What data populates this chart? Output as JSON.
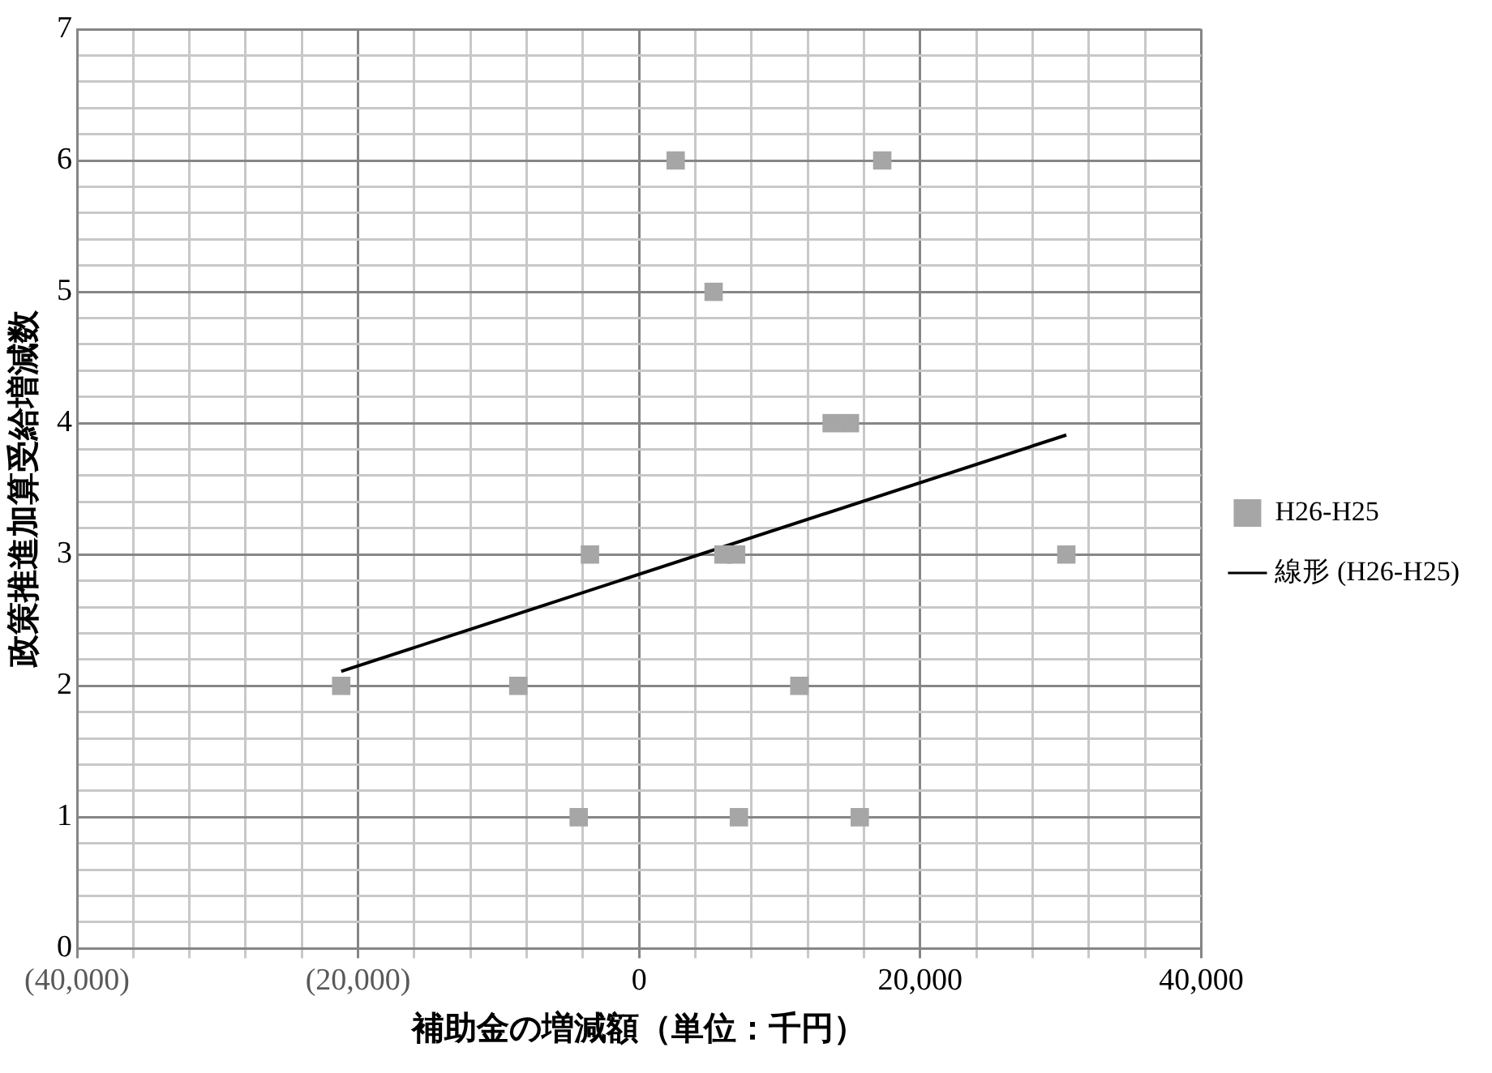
{
  "chart_data": {
    "type": "scatter",
    "xlabel": "補助金の増減額（単位：千円）",
    "ylabel": "政策推進加算受給増減数",
    "xlim": [
      -40000,
      40000
    ],
    "xticks": [
      {
        "value": -40000,
        "label": "(40,000)"
      },
      {
        "value": -36000,
        "label": null
      },
      {
        "value": -32000,
        "label": null
      },
      {
        "value": -28000,
        "label": null
      },
      {
        "value": -24000,
        "label": null
      },
      {
        "value": -20000,
        "label": "(20,000)"
      },
      {
        "value": -16000,
        "label": null
      },
      {
        "value": -12000,
        "label": null
      },
      {
        "value": -8000,
        "label": null
      },
      {
        "value": -4000,
        "label": null
      },
      0,
      {
        "value": 4000,
        "label": null
      },
      {
        "value": 8000,
        "label": null
      },
      {
        "value": 12000,
        "label": null
      },
      {
        "value": 16000,
        "label": null
      },
      {
        "value": 20000,
        "label": "20,000"
      },
      {
        "value": 24000,
        "label": null
      },
      {
        "value": 28000,
        "label": null
      },
      {
        "value": 32000,
        "label": null
      },
      {
        "value": 36000,
        "label": null
      },
      {
        "value": 40000,
        "label": "40,000"
      }
    ],
    "ylim": [
      0,
      7
    ],
    "yticks": [
      0,
      {
        "value": 0.2,
        "label": null
      },
      {
        "value": 0.4,
        "label": null
      },
      {
        "value": 0.6,
        "label": null
      },
      {
        "value": 0.8,
        "label": null
      },
      1,
      {
        "value": 1.2,
        "label": null
      },
      {
        "value": 1.4,
        "label": null
      },
      {
        "value": 1.6,
        "label": null
      },
      {
        "value": 1.8,
        "label": null
      },
      2,
      {
        "value": 2.2,
        "label": null
      },
      {
        "value": 2.4,
        "label": null
      },
      {
        "value": 2.6,
        "label": null
      },
      {
        "value": 2.8,
        "label": null
      },
      3,
      {
        "value": 3.2,
        "label": null
      },
      {
        "value": 3.4,
        "label": null
      },
      {
        "value": 3.6,
        "label": null
      },
      {
        "value": 3.8,
        "label": null
      },
      4,
      {
        "value": 4.2,
        "label": null
      },
      {
        "value": 4.4,
        "label": null
      },
      {
        "value": 4.6,
        "label": null
      },
      {
        "value": 4.8,
        "label": null
      },
      5,
      {
        "value": 5.2,
        "label": null
      },
      {
        "value": 5.4,
        "label": null
      },
      {
        "value": 5.6,
        "label": null
      },
      {
        "value": 5.8,
        "label": null
      },
      6,
      {
        "value": 6.2,
        "label": null
      },
      {
        "value": 6.4,
        "label": null
      },
      {
        "value": 6.6,
        "label": null
      },
      {
        "value": 6.8,
        "label": null
      },
      7
    ],
    "grid": true,
    "legend": "right",
    "marker": "square",
    "series": [
      {
        "name": "H26-H25",
        "color": "#a6a6a6",
        "x": [
          -4300,
          7100,
          15700,
          -21200,
          -8600,
          11400,
          -3500,
          6000,
          6900,
          30400,
          13700,
          15000,
          5300,
          2600,
          17300
        ],
        "values": [
          1,
          1,
          1,
          2,
          2,
          2,
          3,
          3,
          3,
          3,
          4,
          4,
          5,
          6,
          6
        ]
      },
      {
        "name": "線形 (H26-H25)",
        "type": "line",
        "color": "#000000",
        "x": [
          -21200,
          30400
        ],
        "values": [
          2.11,
          3.91
        ],
        "marker": "none",
        "line_style": "solid"
      }
    ]
  }
}
